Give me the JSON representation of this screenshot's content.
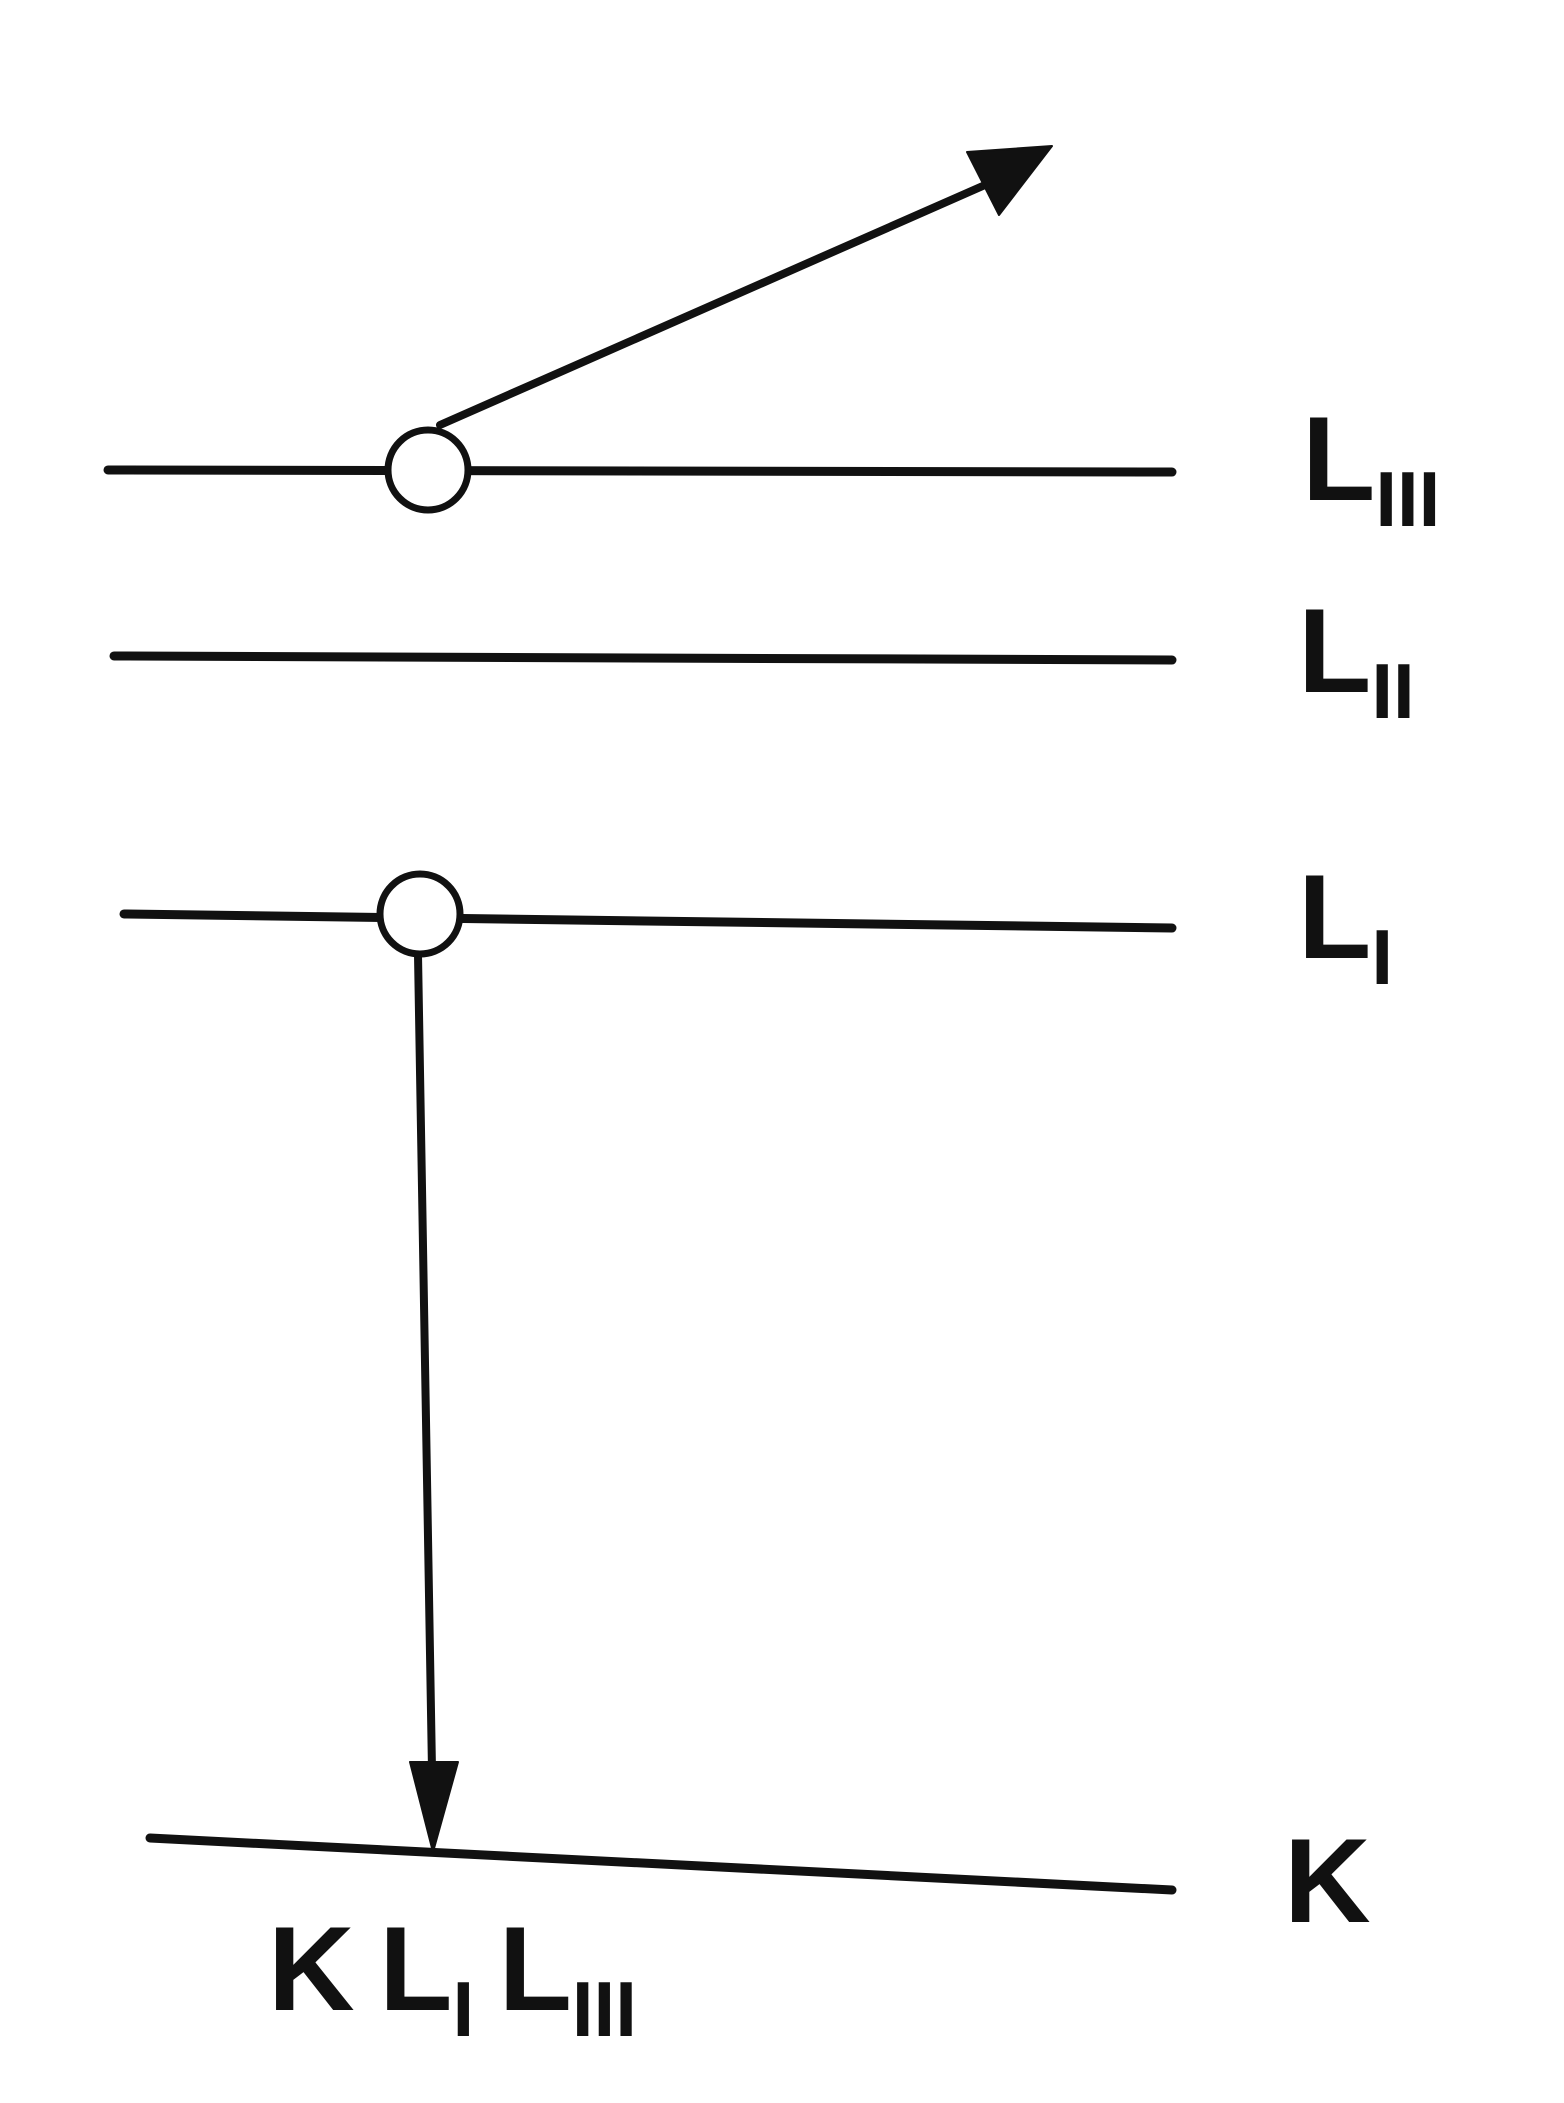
{
  "levels": [
    {
      "id": "LIII",
      "base": "L",
      "sub": "III"
    },
    {
      "id": "LII",
      "base": "L",
      "sub": "II"
    },
    {
      "id": "LI",
      "base": "L",
      "sub": "I"
    },
    {
      "id": "K",
      "base": "K",
      "sub": ""
    }
  ],
  "transition_label": [
    {
      "base": "K",
      "sub": ""
    },
    {
      "base": "L",
      "sub": "I"
    },
    {
      "base": "L",
      "sub": "III"
    }
  ],
  "colors": {
    "ink": "#111111",
    "background": "#ffffff"
  }
}
